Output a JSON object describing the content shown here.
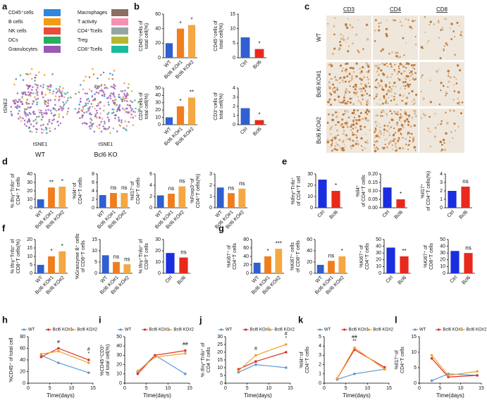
{
  "panel_labels": [
    "a",
    "b",
    "c",
    "d",
    "e",
    "f",
    "g",
    "h",
    "i",
    "j",
    "k",
    "l"
  ],
  "tsne": {
    "legend": [
      {
        "name": "CD45⁺cells",
        "color": "#2e86de"
      },
      {
        "name": "B cells",
        "color": "#f39c12"
      },
      {
        "name": "NK cells",
        "color": "#e74c3c"
      },
      {
        "name": "DCs",
        "color": "#27ae60"
      },
      {
        "name": "Granulocytes",
        "color": "#9b59b6"
      },
      {
        "name": "Macrophages",
        "color": "#8d6e63"
      },
      {
        "name": "T activity",
        "color": "#f78fb3"
      },
      {
        "name": "CD4⁺Tcells",
        "color": "#95a5a6"
      },
      {
        "name": "Treg",
        "color": "#b5b82e"
      },
      {
        "name": "CD8⁺Tcells",
        "color": "#1abc9c"
      }
    ],
    "xlabel": "tSNE1",
    "ylabel": "tSNE2",
    "captions": [
      "WT",
      "Bcl6 KO"
    ]
  },
  "ihc": {
    "columns": [
      "CD3",
      "CD4",
      "CD8"
    ],
    "rows": [
      "WT",
      "Bcl6 KO#1",
      "Bcl6 KO#2"
    ]
  },
  "chart_data": [
    {
      "type": "bar",
      "ylabel": [
        "CD45⁺cells of",
        "total cell(%)"
      ],
      "categories": [
        "WT",
        "Bcl6 KO#1",
        "Bcl6 KO#2"
      ],
      "values": [
        20,
        40,
        45
      ],
      "colors": [
        "#2f5fd0",
        "#f07d1e",
        "#f4a742"
      ],
      "sig": [
        null,
        "*",
        "*"
      ],
      "ylim": [
        0,
        60
      ],
      "yticks": [
        0,
        20,
        40,
        60
      ]
    },
    {
      "type": "bar",
      "ylabel": [
        "CD45⁺cells of",
        "total cell(%)"
      ],
      "categories": [
        "Ctrl",
        "Bcl6"
      ],
      "values": [
        7,
        3
      ],
      "colors": [
        "#2f5fd0",
        "#e8291c"
      ],
      "sig": [
        null,
        "*"
      ],
      "ylim": [
        0,
        15
      ],
      "yticks": [
        0,
        5,
        10,
        15
      ]
    },
    {
      "type": "bar",
      "ylabel": [
        "CD3⁺cells of",
        "total cell(%)"
      ],
      "categories": [
        "WT",
        "Bcl6 KO#1",
        "Bcl6 KO#2"
      ],
      "values": [
        10,
        25,
        37
      ],
      "colors": [
        "#2f5fd0",
        "#f07d1e",
        "#f4a742"
      ],
      "sig": [
        null,
        "*",
        "**"
      ],
      "ylim": [
        0,
        50
      ],
      "yticks": [
        0,
        10,
        20,
        30,
        40,
        50
      ]
    },
    {
      "type": "bar",
      "ylabel": [
        "CD3⁺cells of",
        "total cell(%)"
      ],
      "categories": [
        "Ctrl",
        "Bcl6"
      ],
      "values": [
        1.8,
        0.5
      ],
      "colors": [
        "#2f5fd0",
        "#e8291c"
      ],
      "sig": [
        null,
        "*"
      ],
      "ylim": [
        0,
        4
      ],
      "yticks": [
        0,
        1,
        2,
        3,
        4
      ]
    },
    {
      "type": "bar",
      "ylabel": [
        "% Ifnγ⁺Tnfα⁺ of",
        "CD4⁺ T cells"
      ],
      "categories": [
        "WT",
        "Bcl6 KO#1",
        "Bcl6 KO#2"
      ],
      "values": [
        10,
        24,
        25
      ],
      "colors": [
        "#2f5fd0",
        "#f07d1e",
        "#f4a742"
      ],
      "sig": [
        null,
        "**",
        "*"
      ],
      "ylim": [
        0,
        40
      ],
      "yticks": [
        0,
        10,
        20,
        30,
        40
      ]
    },
    {
      "type": "bar",
      "ylabel": [
        "%Il4⁺of",
        "CD4⁺T cells"
      ],
      "categories": [
        "WT",
        "Bcl6 KO#1",
        "Bcl6 KO#2"
      ],
      "values": [
        3,
        3.5,
        3.5
      ],
      "colors": [
        "#2f5fd0",
        "#f07d1e",
        "#f4a742"
      ],
      "sig": [
        null,
        "ns",
        "ns"
      ],
      "ylim": [
        0,
        8
      ],
      "yticks": [
        0,
        2,
        4,
        6,
        8
      ]
    },
    {
      "type": "bar",
      "ylabel": [
        "%Il17⁺of",
        "CD4⁺T cells"
      ],
      "categories": [
        "WT",
        "Bcl6 KO#1",
        "Bcl6 KO#2"
      ],
      "values": [
        2.2,
        2.5,
        3.8
      ],
      "colors": [
        "#2f5fd0",
        "#f07d1e",
        "#f4a742"
      ],
      "sig": [
        null,
        "ns",
        "ns"
      ],
      "ylim": [
        0,
        6
      ],
      "yticks": [
        0,
        2,
        4,
        6
      ]
    },
    {
      "type": "bar",
      "ylabel": [
        "%Foxp3⁺of",
        "CD4⁺T cells(%)"
      ],
      "categories": [
        "WT",
        "Bcl6 KO#1",
        "Bcl6 KO#2"
      ],
      "values": [
        1.8,
        1.3,
        1.7
      ],
      "colors": [
        "#2f5fd0",
        "#f07d1e",
        "#f4a742"
      ],
      "sig": [
        null,
        "ns",
        "ns"
      ],
      "ylim": [
        0,
        3
      ],
      "yticks": [
        0,
        1,
        2,
        3
      ]
    },
    {
      "type": "bar",
      "ylabel": [
        "%Ifnγ⁺Tnfα⁺",
        "of CD4⁺T cell"
      ],
      "categories": [
        "Ctrl",
        "Bcl6"
      ],
      "values": [
        25,
        15
      ],
      "colors": [
        "#1a2ee0",
        "#e8291c"
      ],
      "sig": [
        null,
        "*"
      ],
      "ylim": [
        0,
        30
      ],
      "yticks": [
        0,
        10,
        20,
        30
      ]
    },
    {
      "type": "bar",
      "ylabel": [
        "%Il4⁺",
        "of CD4⁺T cells"
      ],
      "categories": [
        "Ctrl",
        "Bcl6"
      ],
      "values": [
        0.12,
        0.05
      ],
      "colors": [
        "#1a2ee0",
        "#e8291c"
      ],
      "sig": [
        null,
        "*"
      ],
      "ylim": [
        0,
        0.2
      ],
      "yticks": [
        {
          "value": 0,
          "label": "0.00"
        },
        {
          "value": 0.05,
          "label": "0.05"
        },
        {
          "value": 0.1,
          "label": "0.10"
        },
        {
          "value": 0.15,
          "label": "0.15"
        },
        {
          "value": 0.2,
          "label": "0.20"
        }
      ]
    },
    {
      "type": "bar",
      "ylabel": [
        "%Il17⁺",
        "of CD4⁺T cells(%)"
      ],
      "categories": [
        "Ctrl",
        "Bcl6"
      ],
      "values": [
        2,
        2.5
      ],
      "colors": [
        "#1a2ee0",
        "#e8291c"
      ],
      "sig": [
        null,
        "ns"
      ],
      "ylim": [
        0,
        4
      ],
      "yticks": [
        0,
        1,
        2,
        3,
        4
      ]
    },
    {
      "type": "bar",
      "ylabel": [
        "% Ifnγ⁺Tnfα⁺ of",
        "CD8⁺T cells(%)"
      ],
      "categories": [
        "WT",
        "Bcl6 KO#1",
        "Bcl6 KO#2"
      ],
      "values": [
        5,
        10,
        13
      ],
      "colors": [
        "#2f5fd0",
        "#f07d1e",
        "#f4a742"
      ],
      "sig": [
        null,
        "*",
        "*"
      ],
      "ylim": [
        0,
        20
      ],
      "yticks": [
        0,
        5,
        10,
        15,
        20
      ]
    },
    {
      "type": "bar",
      "ylabel": [
        "%Granzyme B⁺ cells",
        "of CD8⁺T cells"
      ],
      "categories": [
        "WT",
        "Bcl6 KO#1",
        "Bcl6 KO#2"
      ],
      "values": [
        8,
        5,
        4
      ],
      "colors": [
        "#2f5fd0",
        "#f07d1e",
        "#f4a742"
      ],
      "sig": [
        null,
        "ns",
        "ns"
      ],
      "ylim": [
        0,
        15
      ],
      "yticks": [
        0,
        5,
        10,
        15
      ]
    },
    {
      "type": "bar",
      "ylabel": [
        "% Ifnγ⁺Tnfα⁺ of",
        "CD8⁺T cells"
      ],
      "categories": [
        "Ctrl",
        "Bcl6"
      ],
      "values": [
        18,
        14
      ],
      "colors": [
        "#1a2ee0",
        "#e8291c"
      ],
      "sig": [
        null,
        "ns"
      ],
      "ylim": [
        0,
        30
      ],
      "yticks": [
        0,
        10,
        20,
        30
      ]
    },
    {
      "type": "bar",
      "ylabel": [
        "%Ki67⁺ of",
        "CD4⁺T cells"
      ],
      "categories": [
        "WT",
        "Bcl6 KO#1",
        "Bcl6 KO#2"
      ],
      "values": [
        25,
        40,
        58
      ],
      "colors": [
        "#2f5fd0",
        "#f07d1e",
        "#f4a742"
      ],
      "sig": [
        null,
        "*",
        "***"
      ],
      "ylim": [
        0,
        80
      ],
      "yticks": [
        0,
        20,
        40,
        60,
        80
      ]
    },
    {
      "type": "bar",
      "ylabel": [
        "%Ki67⁺ cells",
        "of CD8⁺T cells"
      ],
      "categories": [
        "WT",
        "Bcl6 KO#1",
        "Bcl6 KO#2"
      ],
      "values": [
        15,
        22,
        30
      ],
      "colors": [
        "#2f5fd0",
        "#f07d1e",
        "#f4a742"
      ],
      "sig": [
        null,
        "ns",
        "*"
      ],
      "ylim": [
        0,
        60
      ],
      "yticks": [
        0,
        20,
        40,
        60
      ]
    },
    {
      "type": "bar",
      "ylabel": [
        "%Ki67⁺ of",
        "CD4⁺T cells"
      ],
      "categories": [
        "Ctrl",
        "Bcl6"
      ],
      "values": [
        38,
        25
      ],
      "colors": [
        "#1a2ee0",
        "#e8291c"
      ],
      "sig": [
        null,
        "**"
      ],
      "ylim": [
        0,
        50
      ],
      "yticks": [
        0,
        10,
        20,
        30,
        40,
        50
      ]
    },
    {
      "type": "bar",
      "ylabel": [
        "%Ki67⁺ of",
        "CD8⁺T cells"
      ],
      "categories": [
        "Ctrl",
        "Bcl6"
      ],
      "values": [
        33,
        30
      ],
      "colors": [
        "#1a2ee0",
        "#e8291c"
      ],
      "sig": [
        null,
        "ns"
      ],
      "ylim": [
        0,
        50
      ],
      "yticks": [
        0,
        10,
        20,
        30,
        40,
        50
      ]
    },
    {
      "type": "line",
      "ylabel": [
        "%CD45⁺ of total cell"
      ],
      "xlabel": "Time(days)",
      "x": [
        3,
        7,
        14
      ],
      "series": [
        {
          "name": "WT",
          "color": "#5b9bd5",
          "values": [
            48,
            35,
            18
          ]
        },
        {
          "name": "Bcl6 KO#1",
          "color": "#e03020",
          "values": [
            45,
            60,
            40
          ]
        },
        {
          "name": "Bcl6 KO#2",
          "color": "#f0a030",
          "values": [
            50,
            55,
            35
          ]
        }
      ],
      "annotations": [
        {
          "x": 7,
          "text": "#"
        },
        {
          "x": 14,
          "text": "*"
        },
        {
          "x": 14,
          "text": "#"
        }
      ],
      "xlim": [
        0,
        15
      ],
      "xticks": [
        0,
        5,
        10,
        15
      ],
      "ylim": [
        0,
        80
      ],
      "yticks": [
        0,
        20,
        40,
        60,
        80
      ]
    },
    {
      "type": "line",
      "ylabel": [
        "%CD45⁺CD3⁺",
        "of total cell(%)"
      ],
      "xlabel": "Time(days)",
      "x": [
        3,
        7,
        14
      ],
      "series": [
        {
          "name": "WT",
          "color": "#5b9bd5",
          "values": [
            12,
            30,
            10
          ]
        },
        {
          "name": "Bcl6 KO#1",
          "color": "#e03020",
          "values": [
            10,
            30,
            35
          ]
        },
        {
          "name": "Bcl6 KO#2",
          "color": "#f0a030",
          "values": [
            13,
            28,
            32
          ]
        }
      ],
      "annotations": [
        {
          "x": 14,
          "text": "##"
        }
      ],
      "xlim": [
        0,
        15
      ],
      "xticks": [
        0,
        5,
        10,
        15
      ],
      "ylim": [
        0,
        50
      ],
      "yticks": [
        0,
        10,
        20,
        30,
        40,
        50
      ]
    },
    {
      "type": "line",
      "ylabel": [
        "% Ifnγ⁺Tnfα⁺ of",
        "CD4 T cells"
      ],
      "xlabel": "Time(days)",
      "x": [
        3,
        7,
        14
      ],
      "series": [
        {
          "name": "WT",
          "color": "#5b9bd5",
          "values": [
            7,
            12,
            10
          ]
        },
        {
          "name": "Bcl6 KO#1",
          "color": "#e03020",
          "values": [
            9,
            14,
            20
          ]
        },
        {
          "name": "Bcl6 KO#2",
          "color": "#f0a030",
          "values": [
            8,
            18,
            25
          ]
        }
      ],
      "annotations": [
        {
          "x": 7,
          "text": "#"
        },
        {
          "x": 14,
          "text": "*"
        },
        {
          "x": 14,
          "text": "#"
        }
      ],
      "xlim": [
        0,
        15
      ],
      "xticks": [
        0,
        5,
        10,
        15
      ],
      "ylim": [
        0,
        30
      ],
      "yticks": [
        0,
        5,
        10,
        15,
        20,
        25,
        30
      ]
    },
    {
      "type": "line",
      "ylabel": [
        "%Il4⁺of",
        "CD4⁺T cells"
      ],
      "xlabel": "Time(days)",
      "x": [
        3,
        7,
        14
      ],
      "series": [
        {
          "name": "WT",
          "color": "#5b9bd5",
          "values": [
            0.4,
            1,
            1.5
          ]
        },
        {
          "name": "Bcl6 KO#1",
          "color": "#e03020",
          "values": [
            0.5,
            3.6,
            1.7
          ]
        },
        {
          "name": "Bcl6 KO#2",
          "color": "#f0a030",
          "values": [
            0.5,
            3.8,
            1.5
          ]
        }
      ],
      "annotations": [
        {
          "x": 7,
          "text": "**"
        },
        {
          "x": 7,
          "text": "##"
        }
      ],
      "xlim": [
        0,
        15
      ],
      "xticks": [
        0,
        5,
        10,
        15
      ],
      "ylim": [
        0,
        5
      ],
      "yticks": [
        0,
        1,
        2,
        3,
        4,
        5
      ]
    },
    {
      "type": "line",
      "ylabel": [
        "%Il17⁺of",
        "CD4⁺T cells"
      ],
      "xlabel": "Time(days)",
      "x": [
        3,
        7,
        14
      ],
      "series": [
        {
          "name": "WT",
          "color": "#5b9bd5",
          "values": [
            0.8,
            3,
            2.5
          ]
        },
        {
          "name": "Bcl6 KO#1",
          "color": "#e03020",
          "values": [
            8,
            2,
            2.5
          ]
        },
        {
          "name": "Bcl6 KO#2",
          "color": "#f0a030",
          "values": [
            9,
            2.5,
            3.8
          ]
        }
      ],
      "xlim": [
        0,
        15
      ],
      "xticks": [
        0,
        5,
        10,
        15
      ],
      "ylim": [
        0,
        15
      ],
      "yticks": [
        0,
        5,
        10,
        15
      ]
    }
  ]
}
